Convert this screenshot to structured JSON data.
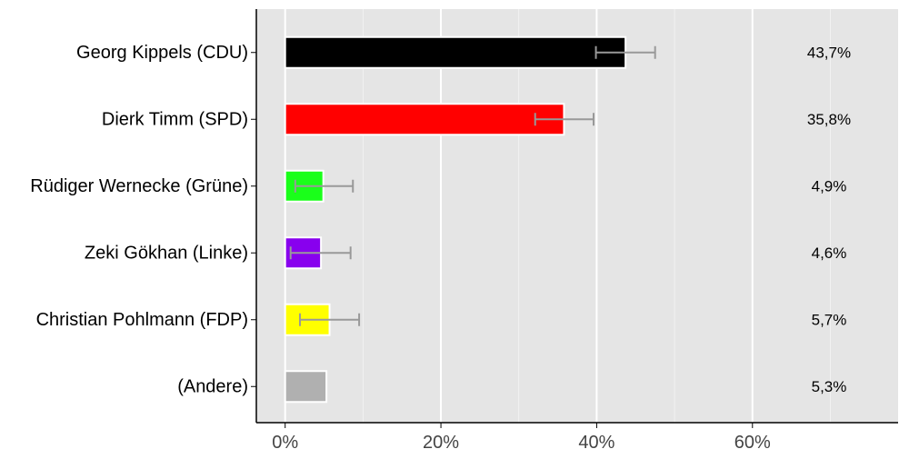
{
  "chart_data": {
    "type": "bar",
    "orientation": "horizontal",
    "title": "",
    "xlabel": "",
    "ylabel": "",
    "categories": [
      "Georg Kippels (CDU)",
      "Dierk Timm (SPD)",
      "Rüdiger Wernecke (Grüne)",
      "Zeki Gökhan (Linke)",
      "Christian Pohlmann (FDP)",
      "(Andere)"
    ],
    "values": [
      43.7,
      35.8,
      4.9,
      4.6,
      5.7,
      5.3
    ],
    "value_labels": [
      "43,7%",
      "35,8%",
      "4,9%",
      "4,6%",
      "5,7%",
      "5,3%"
    ],
    "error_bars": [
      [
        39.9,
        47.5
      ],
      [
        32.1,
        39.6
      ],
      [
        1.3,
        8.7
      ],
      [
        0.7,
        8.4
      ],
      [
        1.9,
        9.5
      ],
      null
    ],
    "colors": [
      "#000000",
      "#ff0000",
      "#1aff1a",
      "#8800ee",
      "#ffff00",
      "#b0b0b0"
    ],
    "xlim": [
      -3.7,
      78.7
    ],
    "xticks": [
      0,
      20,
      40,
      60
    ],
    "xtick_labels": [
      "0%",
      "20%",
      "40%",
      "60%"
    ],
    "grid": true,
    "legend": "none",
    "panel_color": "#e5e5e5",
    "grid_color": "#ffffff",
    "error_bar_color": "#999999"
  }
}
